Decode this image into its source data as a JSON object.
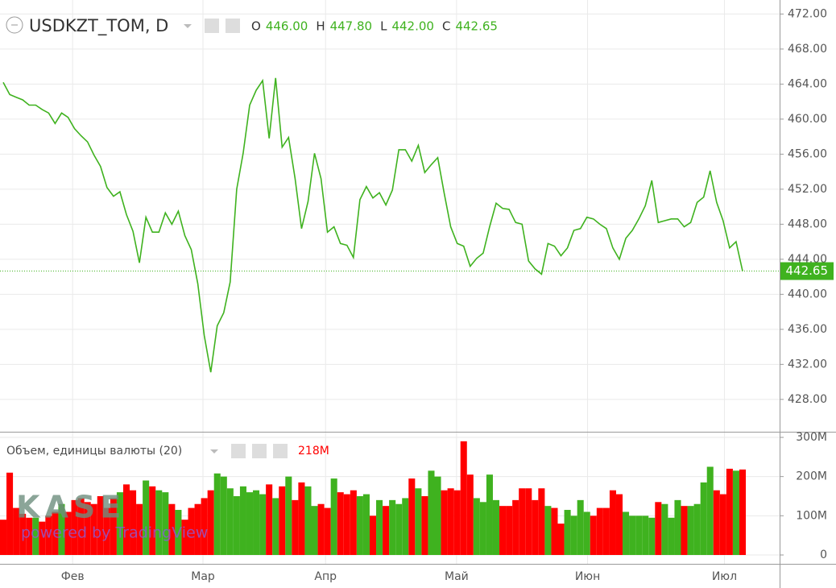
{
  "chart_data": [
    {
      "type": "line",
      "title": "USDKZT_TOM, D",
      "color": "#3fb21f",
      "ohlc_names": [
        "O",
        "H",
        "L",
        "C"
      ],
      "ohlc_values": [
        446.0,
        447.8,
        442.0,
        442.65
      ],
      "ohlc_value_labels": [
        "446.00",
        "447.80",
        "442.00",
        "442.65"
      ],
      "last_value": 442.65,
      "values": [
        464.2,
        462.8,
        462.5,
        462.2,
        461.6,
        461.6,
        461.1,
        460.7,
        459.5,
        460.7,
        460.2,
        458.9,
        458.1,
        457.4,
        455.9,
        454.6,
        452.2,
        451.2,
        451.7,
        449.1,
        447.2,
        443.6,
        448.8,
        447.1,
        447.1,
        449.3,
        448.0,
        449.5,
        446.7,
        445.1,
        441.2,
        435.3,
        431.1,
        436.4,
        437.9,
        441.4,
        452.0,
        456.1,
        461.6,
        463.3,
        464.4,
        457.8,
        464.7,
        456.8,
        457.9,
        453.2,
        447.5,
        450.6,
        456.1,
        453.2,
        447.1,
        447.7,
        445.8,
        445.6,
        444.2,
        450.8,
        452.3,
        451.0,
        451.6,
        450.2,
        451.9,
        456.5,
        456.5,
        455.2,
        457.0,
        453.9,
        454.8,
        455.6,
        451.5,
        447.7,
        445.8,
        445.5,
        443.2,
        444.1,
        444.7,
        447.7,
        450.4,
        449.8,
        449.7,
        448.2,
        448.0,
        443.8,
        442.9,
        442.3,
        445.8,
        445.5,
        444.4,
        445.3,
        447.3,
        447.5,
        448.8,
        448.6,
        448.0,
        447.5,
        445.3,
        444.0,
        446.4,
        447.3,
        448.6,
        450.1,
        453.0,
        448.2,
        448.4,
        448.6,
        448.6,
        447.7,
        448.2,
        450.5,
        451.1,
        454.1,
        450.5,
        448.4,
        445.3,
        446.0,
        442.65
      ],
      "ylim": [
        424.4,
        473.6
      ],
      "yticks": [
        {
          "value": 428,
          "label": "428.00"
        },
        {
          "value": 432,
          "label": "432.00"
        },
        {
          "value": 436,
          "label": "436.00"
        },
        {
          "value": 440,
          "label": "440.00"
        },
        {
          "value": 444,
          "label": "444.00"
        },
        {
          "value": 448,
          "label": "448.00"
        },
        {
          "value": 452,
          "label": "452.00"
        },
        {
          "value": 456,
          "label": "456.00"
        },
        {
          "value": 460,
          "label": "460.00"
        },
        {
          "value": 464,
          "label": "464.00"
        },
        {
          "value": 468,
          "label": "468.00"
        },
        {
          "value": 472,
          "label": "472.00"
        }
      ],
      "watermark": "KASE",
      "watermark_sub": "powered by TradingView"
    },
    {
      "type": "bar",
      "title": "Объем, единицы валюты (20)",
      "readout": "218M",
      "up_color": "#3fb21f",
      "down_color": "#ff0000",
      "values": [
        90,
        210,
        120,
        105,
        95,
        95,
        85,
        100,
        110,
        130,
        110,
        140,
        145,
        135,
        130,
        150,
        120,
        145,
        160,
        180,
        165,
        130,
        190,
        175,
        165,
        160,
        130,
        115,
        90,
        120,
        130,
        145,
        165,
        208,
        200,
        170,
        150,
        175,
        160,
        165,
        155,
        180,
        145,
        175,
        200,
        140,
        185,
        175,
        125,
        130,
        120,
        195,
        160,
        155,
        165,
        150,
        155,
        100,
        140,
        125,
        140,
        130,
        145,
        195,
        170,
        150,
        215,
        200,
        165,
        170,
        165,
        290,
        205,
        145,
        135,
        205,
        140,
        125,
        125,
        140,
        170,
        170,
        140,
        170,
        125,
        120,
        80,
        115,
        100,
        140,
        110,
        100,
        120,
        120,
        165,
        155,
        110,
        100,
        100,
        100,
        95,
        135,
        130,
        95,
        140,
        125,
        125,
        130,
        185,
        225,
        165,
        155,
        220,
        215,
        218
      ],
      "ylim": [
        -22.6,
        312.3
      ],
      "yticks": [
        0,
        {
          "value": 100,
          "label": "100M"
        },
        {
          "value": 200,
          "label": "200M"
        },
        {
          "value": 300,
          "label": "300M"
        }
      ],
      "xticks": [
        {
          "value": 10.7,
          "label": "Фев"
        },
        {
          "value": 30.8,
          "label": "Мар"
        },
        {
          "value": 49.7,
          "label": "Апр"
        },
        {
          "value": 69.9,
          "label": "Май"
        },
        {
          "value": 90.1,
          "label": "Июн"
        },
        {
          "value": 111.2,
          "label": "Июл"
        }
      ]
    }
  ]
}
